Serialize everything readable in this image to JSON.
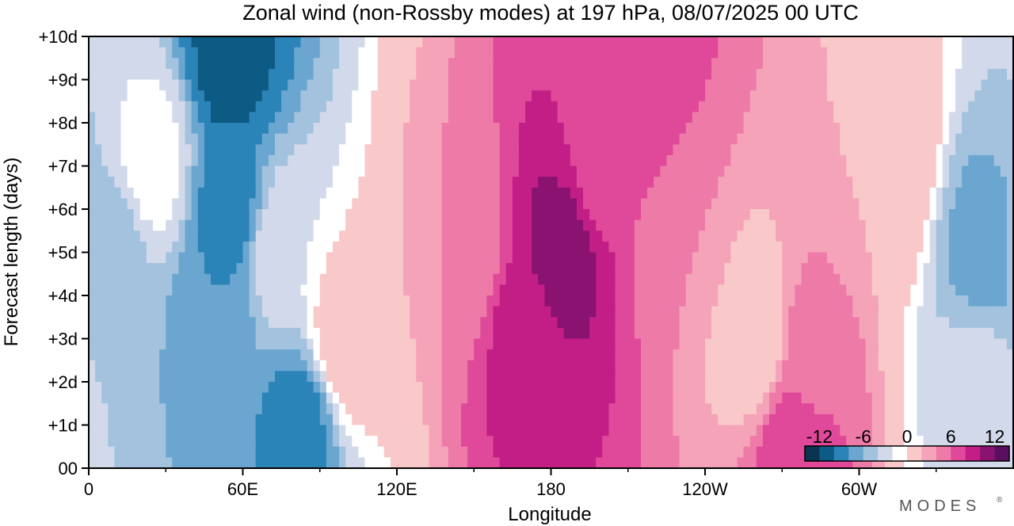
{
  "chart_data": {
    "type": "heatmap",
    "title": "Zonal wind (non-Rossby modes) at 197 hPa,  08/07/2025  00 UTC",
    "xlabel": "Longitude",
    "ylabel": "Forecast length (days)",
    "x_ticks": [
      "0",
      "60E",
      "120E",
      "180",
      "120W",
      "60W"
    ],
    "x_tick_values": [
      0,
      60,
      120,
      180,
      240,
      300
    ],
    "x_minor_tick_values": [
      30,
      90,
      150,
      210,
      270,
      330
    ],
    "xlim": [
      0,
      360
    ],
    "y_ticks": [
      "00",
      "+1d",
      "+2d",
      "+3d",
      "+4d",
      "+5d",
      "+6d",
      "+7d",
      "+8d",
      "+9d",
      "+10d"
    ],
    "y_tick_values": [
      0,
      1,
      2,
      3,
      4,
      5,
      6,
      7,
      8,
      9,
      10
    ],
    "ylim": [
      0,
      10
    ],
    "colorbar": {
      "labels": [
        "-12",
        "-6",
        "0",
        "6",
        "12"
      ],
      "label_values": [
        -12,
        -6,
        0,
        6,
        12
      ],
      "levels": [
        -14,
        -12,
        -10,
        -8,
        -6,
        -4,
        -2,
        2,
        4,
        6,
        8,
        10,
        12,
        14
      ],
      "colors": [
        "#0a3350",
        "#0d5a84",
        "#2b84b8",
        "#6aa6cf",
        "#a3c2de",
        "#d2d9ea",
        "#ffffff",
        "#f9c8c8",
        "#f5a3b9",
        "#ee7aa8",
        "#e0489a",
        "#c21e86",
        "#8a1270",
        "#5a0e5e"
      ]
    },
    "features": [
      {
        "lon": 10,
        "day": 5,
        "value": -7
      },
      {
        "lon": 25,
        "day": 7,
        "value": -3
      },
      {
        "lon": 50,
        "day": 4,
        "value": -10
      },
      {
        "lon": 55,
        "day": 9.5,
        "value": -13
      },
      {
        "lon": 55,
        "day": 6,
        "value": -11
      },
      {
        "lon": 82,
        "day": 1,
        "value": -11
      },
      {
        "lon": 75,
        "day": 5,
        "value": -4
      },
      {
        "lon": 100,
        "day": 3,
        "value": 0
      },
      {
        "lon": 145,
        "day": 5,
        "value": 4
      },
      {
        "lon": 170,
        "day": 3,
        "value": 9
      },
      {
        "lon": 185,
        "day": 5,
        "value": 11
      },
      {
        "lon": 200,
        "day": 7,
        "value": 7
      },
      {
        "lon": 215,
        "day": 8.5,
        "value": 8
      },
      {
        "lon": 230,
        "day": 5.5,
        "value": 4
      },
      {
        "lon": 260,
        "day": 3,
        "value": 0
      },
      {
        "lon": 275,
        "day": 0.5,
        "value": 8
      },
      {
        "lon": 280,
        "day": 2.5,
        "value": 5
      },
      {
        "lon": 310,
        "day": 7,
        "value": 2
      },
      {
        "lon": 348,
        "day": 5,
        "value": -9
      },
      {
        "lon": 345,
        "day": 2,
        "value": -5
      }
    ]
  },
  "brand": "MODES",
  "brand_mark": "®"
}
